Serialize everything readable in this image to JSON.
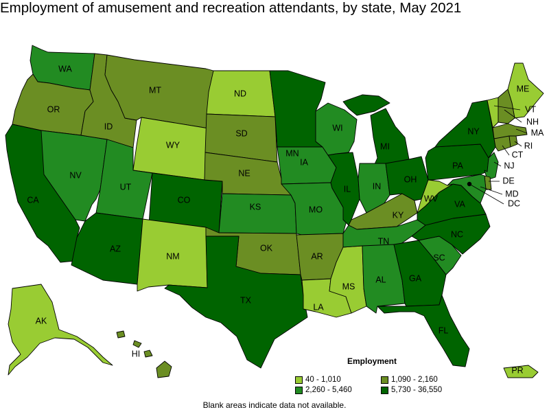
{
  "title": "Employment of amusement and recreation attendants, by state, May 2021",
  "legend": {
    "title": "Employment",
    "classes": [
      {
        "label": "40 - 1,010",
        "color": "#99cc33"
      },
      {
        "label": "1,090 - 2,160",
        "color": "#6b8e23"
      },
      {
        "label": "2,260 - 5,460",
        "color": "#228b22"
      },
      {
        "label": "5,730 - 36,550",
        "color": "#006400"
      }
    ]
  },
  "footnote": "Blank areas indicate data not available.",
  "states": {
    "WA": 2,
    "OR": 1,
    "CA": 3,
    "NV": 2,
    "ID": 1,
    "MT": 1,
    "WY": 0,
    "UT": 2,
    "CO": 3,
    "AZ": 3,
    "NM": 0,
    "ND": 0,
    "SD": 1,
    "NE": 1,
    "KS": 2,
    "OK": 1,
    "TX": 3,
    "MN": 3,
    "IA": 2,
    "MO": 2,
    "AR": 1,
    "LA": 0,
    "WI": 2,
    "IL": 3,
    "MS": 0,
    "MI": 3,
    "IN": 2,
    "KY": 1,
    "TN": 2,
    "AL": 2,
    "OH": 3,
    "GA": 3,
    "FL": 3,
    "SC": 2,
    "NC": 3,
    "VA": 3,
    "WV": 0,
    "PA": 3,
    "NY": 3,
    "ME": 0,
    "VT": 0,
    "NH": 1,
    "MA": 1,
    "CT": 1,
    "RI": 1,
    "NJ": 2,
    "DE": 1,
    "MD": 2,
    "DC": 3,
    "AK": 0,
    "HI": 1,
    "PR": 0
  },
  "labels": [
    "WA",
    "OR",
    "CA",
    "NV",
    "ID",
    "MT",
    "WY",
    "UT",
    "CO",
    "AZ",
    "NM",
    "ND",
    "SD",
    "NE",
    "KS",
    "OK",
    "TX",
    "MN",
    "IA",
    "MO",
    "AR",
    "LA",
    "WI",
    "IL",
    "MS",
    "MI",
    "IN",
    "KY",
    "TN",
    "AL",
    "OH",
    "GA",
    "FL",
    "SC",
    "NC",
    "VA",
    "WV",
    "PA",
    "NY",
    "ME",
    "VT",
    "NH",
    "MA",
    "CT",
    "RI",
    "NJ",
    "DE",
    "MD",
    "DC",
    "AK",
    "HI",
    "PR"
  ]
}
